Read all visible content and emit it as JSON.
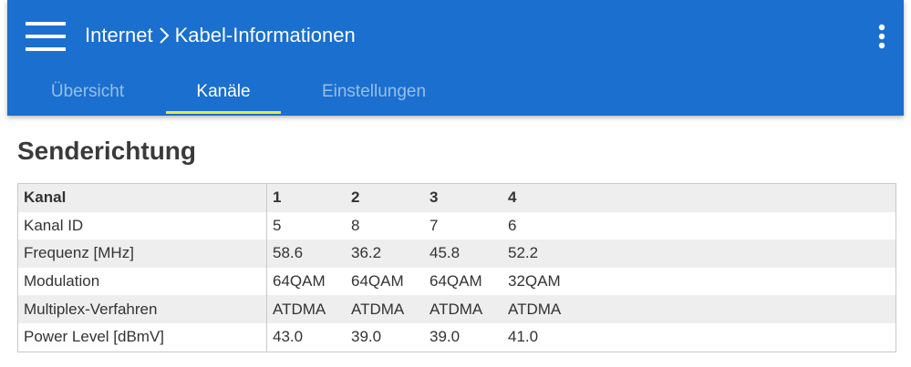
{
  "header": {
    "breadcrumb": [
      "Internet",
      "Kabel-Informationen"
    ]
  },
  "tabs": [
    "Übersicht",
    "Kanäle",
    "Einstellungen"
  ],
  "active_tab": "Kanäle",
  "section": {
    "title": "Senderichtung"
  },
  "table": {
    "rows": [
      [
        "Kanal",
        "1",
        "2",
        "3",
        "4"
      ],
      [
        "Kanal ID",
        "5",
        "8",
        "7",
        "6"
      ],
      [
        "Frequenz [MHz]",
        "58.6",
        "36.2",
        "45.8",
        "52.2"
      ],
      [
        "Modulation",
        "64QAM",
        "64QAM",
        "64QAM",
        "32QAM"
      ],
      [
        "Multiplex-Verfahren",
        "ATDMA",
        "ATDMA",
        "ATDMA",
        "ATDMA"
      ],
      [
        "Power Level [dBmV]",
        "43.0",
        "39.0",
        "39.0",
        "41.0"
      ]
    ]
  }
}
